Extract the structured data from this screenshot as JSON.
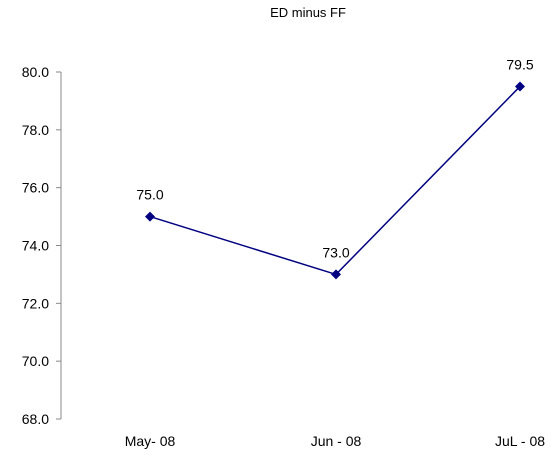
{
  "chart_data": {
    "type": "line",
    "title": "ED minus FF",
    "categories": [
      "May- 08",
      "Jun - 08",
      "JuL - 08"
    ],
    "series": [
      {
        "values": [
          75.0,
          73.0,
          79.5
        ],
        "data_labels": [
          "75.0",
          "73.0",
          "79.5"
        ]
      }
    ],
    "y_ticks": [
      "68.0",
      "70.0",
      "72.0",
      "74.0",
      "76.0",
      "78.0",
      "80.0"
    ],
    "ylim": [
      68,
      80
    ],
    "grid": false,
    "legend": "none",
    "line_color": "#000080",
    "marker": "diamond"
  }
}
